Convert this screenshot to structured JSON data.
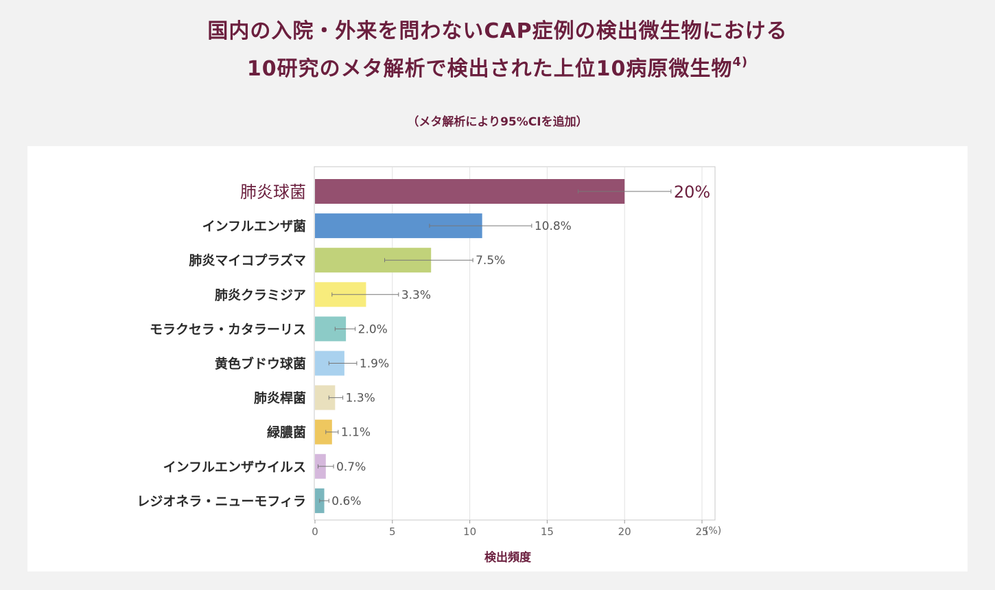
{
  "title": {
    "line1": "国内の入院・外来を問わないCAP症例の検出微生物における",
    "line2": "10研究のメタ解析で検出された上位10病原微生物",
    "ref": "4)"
  },
  "subtitle": "（メタ解析により95%CIを追加）",
  "chart_data": {
    "type": "bar",
    "orientation": "horizontal",
    "xlabel": "検出頻度",
    "x_unit": "(%)",
    "xlim": [
      0,
      25
    ],
    "xticks": [
      0,
      5,
      10,
      15,
      20,
      25
    ],
    "grid": true,
    "categories": [
      "肺炎球菌",
      "インフルエンザ菌",
      "肺炎マイコプラズマ",
      "肺炎クラミジア",
      "モラクセラ・カタラーリス",
      "黄色ブドウ球菌",
      "肺炎桿菌",
      "緑膿菌",
      "インフルエンザウイルス",
      "レジオネラ・ニューモフィラ"
    ],
    "values": [
      20,
      10.8,
      7.5,
      3.3,
      2.0,
      1.9,
      1.3,
      1.1,
      0.7,
      0.6
    ],
    "value_labels": [
      "20%",
      "10.8%",
      "7.5%",
      "3.3%",
      "2.0%",
      "1.9%",
      "1.3%",
      "1.1%",
      "0.7%",
      "0.6%"
    ],
    "ci_low": [
      17.0,
      7.4,
      4.5,
      1.1,
      1.3,
      0.9,
      0.9,
      0.7,
      0.2,
      0.3
    ],
    "ci_high": [
      23.0,
      14.0,
      10.2,
      5.4,
      2.6,
      2.7,
      1.8,
      1.5,
      1.2,
      0.9
    ],
    "colors": [
      "#94506f",
      "#5b93cf",
      "#c1d27a",
      "#f8ec7c",
      "#8ccbc7",
      "#a9d1ee",
      "#e9e0bd",
      "#eec75f",
      "#d5b8dc",
      "#7ab6bd"
    ],
    "highlight_color": "#6b1f3e"
  }
}
